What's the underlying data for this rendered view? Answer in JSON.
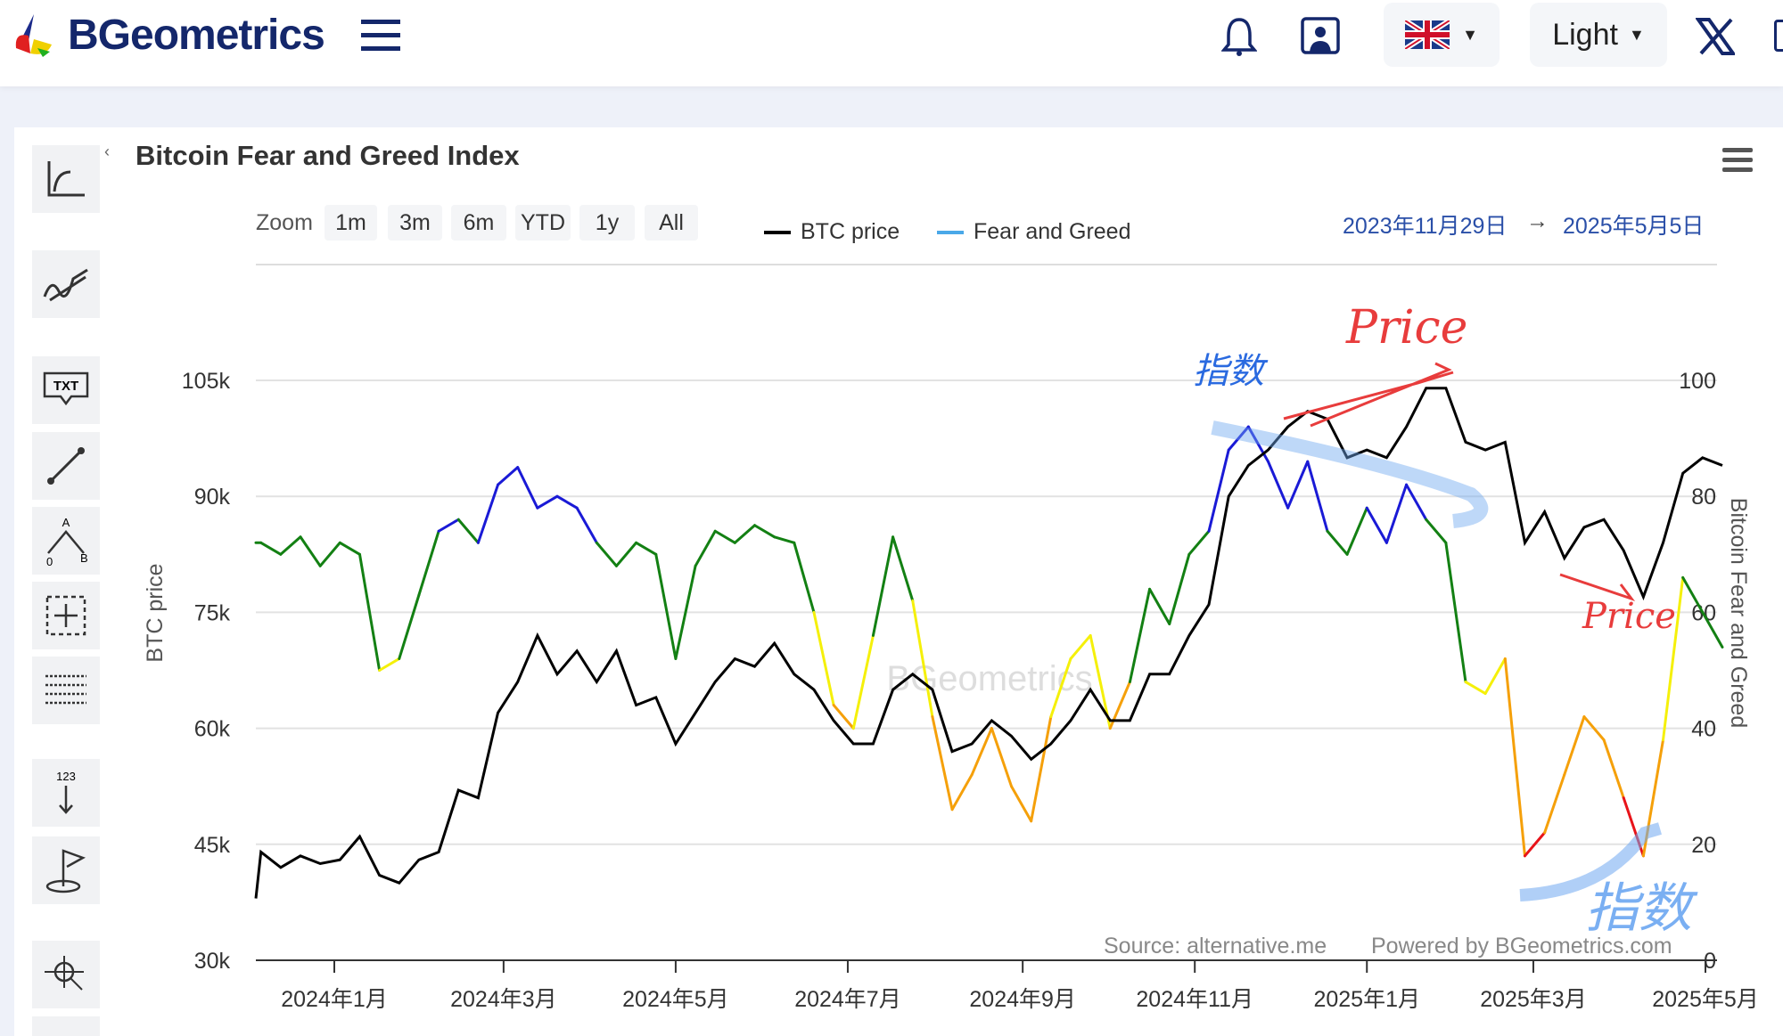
{
  "header": {
    "brand": "BGeometrics",
    "theme_label": "Light"
  },
  "chart_title": "Bitcoin Fear and Greed Index",
  "zoom": {
    "label": "Zoom",
    "buttons": [
      "1m",
      "3m",
      "6m",
      "YTD",
      "1y",
      "All"
    ]
  },
  "legend": {
    "btc": "BTC price",
    "fg": "Fear and Greed"
  },
  "range": {
    "from": "2023年11月29日",
    "arrow": "→",
    "to": "2025年5月5日"
  },
  "credits": {
    "source": "Source: alternative.me",
    "powered": "Powered by BGeometrics.com"
  },
  "watermark": "BGeometrics",
  "annotations": {
    "idx1": "指数",
    "price1": "Price",
    "price2": "Price",
    "idx2": "指数"
  },
  "toolbar_text": {
    "txt": "TXT",
    "a": "A",
    "o": "0",
    "b": "B",
    "n": "123"
  },
  "colors": {
    "btc": "#000000",
    "extreme_greed": "#1a1ad6",
    "greed": "#138013",
    "neutral": "#f5f00a",
    "fear": "#f5a00a",
    "extreme_fear": "#e8141a",
    "fg_legend": "#4aa8e8"
  },
  "chart_data": {
    "type": "line",
    "title": "Bitcoin Fear and Greed Index",
    "ylabel": "BTC price",
    "y2label": "Bitcoin Fear and Greed",
    "ylim": [
      30000,
      105000
    ],
    "y2lim": [
      0,
      100
    ],
    "yticks": [
      "30k",
      "45k",
      "60k",
      "75k",
      "90k",
      "105k"
    ],
    "y2ticks": [
      "0",
      "20",
      "40",
      "60",
      "80",
      "100"
    ],
    "xticks": [
      {
        "date": "2024-01-01",
        "label": "2024年1月"
      },
      {
        "date": "2024-03-01",
        "label": "2024年3月"
      },
      {
        "date": "2024-05-01",
        "label": "2024年5月"
      },
      {
        "date": "2024-07-01",
        "label": "2024年7月"
      },
      {
        "date": "2024-09-01",
        "label": "2024年9月"
      },
      {
        "date": "2024-11-01",
        "label": "2024年11月"
      },
      {
        "date": "2025-01-01",
        "label": "2025年1月"
      },
      {
        "date": "2025-03-01",
        "label": "2025年3月"
      },
      {
        "date": "2025-05-01",
        "label": "2025年5月"
      }
    ],
    "start": "2023-11-29",
    "step_days": 7,
    "series": [
      {
        "name": "BTC price",
        "values": [
          38000,
          44000,
          42000,
          43500,
          42500,
          43000,
          46000,
          41000,
          40000,
          43000,
          44000,
          52000,
          51000,
          62000,
          66000,
          72000,
          67000,
          70000,
          66000,
          70000,
          63000,
          64000,
          58000,
          62000,
          66000,
          69000,
          68000,
          71000,
          67000,
          65000,
          61000,
          58000,
          58000,
          65000,
          67000,
          65000,
          57000,
          58000,
          61000,
          59000,
          56000,
          58000,
          61000,
          65000,
          61000,
          61000,
          67000,
          67000,
          72000,
          76000,
          90000,
          94000,
          96000,
          99000,
          101000,
          100000,
          95000,
          96000,
          95000,
          99000,
          104000,
          104000,
          97000,
          96000,
          97000,
          84000,
          88000,
          82000,
          86000,
          87000,
          83000,
          77000,
          84000,
          93000,
          95000,
          94000
        ]
      },
      {
        "name": "Fear and Greed",
        "values": [
          72,
          72,
          70,
          73,
          68,
          72,
          70,
          50,
          52,
          63,
          74,
          76,
          72,
          82,
          85,
          78,
          80,
          78,
          72,
          68,
          72,
          70,
          52,
          68,
          74,
          72,
          75,
          73,
          72,
          60,
          44,
          40,
          56,
          73,
          62,
          42,
          26,
          32,
          40,
          30,
          24,
          42,
          52,
          56,
          40,
          48,
          64,
          58,
          70,
          74,
          88,
          92,
          86,
          78,
          86,
          74,
          70,
          78,
          72,
          82,
          76,
          72,
          48,
          46,
          52,
          18,
          22,
          32,
          42,
          38,
          28,
          18,
          38,
          66,
          60,
          54
        ]
      }
    ]
  }
}
